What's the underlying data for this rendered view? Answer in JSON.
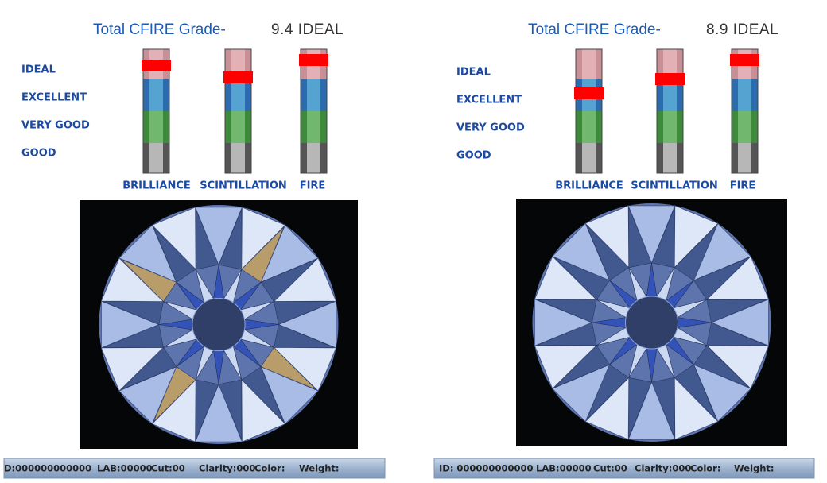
{
  "panels": [
    {
      "title": "Total CFIRE Grade-",
      "grade": "9.4 IDEAL",
      "scale": [
        "IDEAL",
        "EXCELLENT",
        "VERY GOOD",
        "GOOD"
      ],
      "meters": [
        "BRILLIANCE",
        "SCINTILLATION",
        "FIRE"
      ],
      "status": [
        "D:000000000000",
        "LAB:00000",
        "Cut:00",
        "Clarity:000",
        "Color:",
        "Weight:"
      ]
    },
    {
      "title": "Total CFIRE Grade-",
      "grade": "8.9 IDEAL",
      "scale": [
        "IDEAL",
        "EXCELLENT",
        "VERY GOOD",
        "GOOD"
      ],
      "meters": [
        "BRILLIANCE",
        "SCINTILLATION",
        "FIRE"
      ],
      "status": [
        "ID: 000000000000",
        "LAB:00000",
        "Cut:00",
        "Clarity:000",
        "Color:",
        "Weight:"
      ]
    }
  ]
}
